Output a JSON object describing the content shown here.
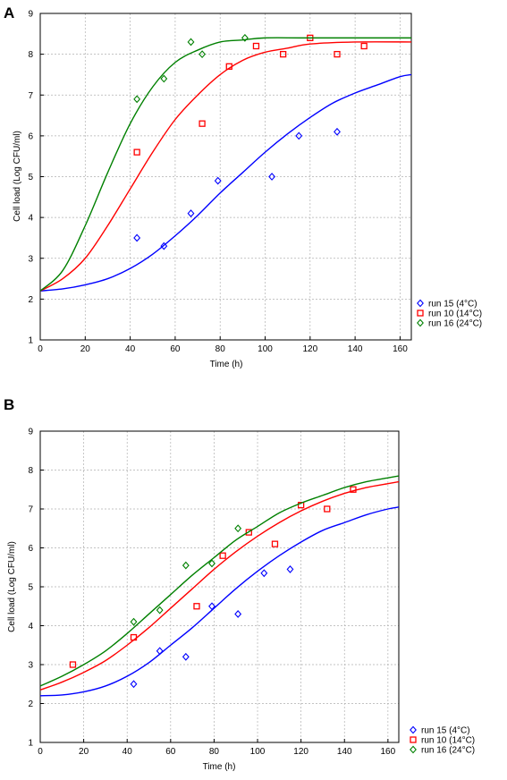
{
  "chart_data": [
    {
      "panel_label": "A",
      "type": "scatter",
      "xlabel": "Time (h)",
      "ylabel": "Cell load (Log CFU/ml)",
      "xlim": [
        0,
        165
      ],
      "ylim": [
        1,
        9
      ],
      "xticks": [
        "0",
        "20",
        "40",
        "60",
        "80",
        "100",
        "120",
        "140",
        "160"
      ],
      "yticks": [
        "1",
        "2",
        "3",
        "4",
        "5",
        "6",
        "7",
        "8",
        "9"
      ],
      "grid": true,
      "legend_position": "bottom-right",
      "series": [
        {
          "name": "run 15 (4°C)",
          "color": "#0000ff",
          "marker": "diamond",
          "points": [
            [
              43,
              3.5
            ],
            [
              55,
              3.3
            ],
            [
              67,
              4.1
            ],
            [
              79,
              4.9
            ],
            [
              103,
              5.0
            ],
            [
              115,
              6.0
            ],
            [
              132,
              6.1
            ]
          ],
          "fit": [
            [
              0,
              2.2
            ],
            [
              10,
              2.25
            ],
            [
              20,
              2.35
            ],
            [
              30,
              2.5
            ],
            [
              40,
              2.75
            ],
            [
              50,
              3.1
            ],
            [
              60,
              3.55
            ],
            [
              70,
              4.05
            ],
            [
              80,
              4.6
            ],
            [
              90,
              5.1
            ],
            [
              100,
              5.6
            ],
            [
              110,
              6.05
            ],
            [
              120,
              6.45
            ],
            [
              130,
              6.8
            ],
            [
              140,
              7.05
            ],
            [
              150,
              7.25
            ],
            [
              160,
              7.45
            ],
            [
              165,
              7.5
            ]
          ]
        },
        {
          "name": "run 10 (14°C)",
          "color": "#ff0000",
          "marker": "square",
          "points": [
            [
              43,
              5.6
            ],
            [
              72,
              6.3
            ],
            [
              84,
              7.7
            ],
            [
              96,
              8.2
            ],
            [
              108,
              8.0
            ],
            [
              120,
              8.4
            ],
            [
              132,
              8.0
            ],
            [
              144,
              8.2
            ]
          ],
          "fit": [
            [
              0,
              2.2
            ],
            [
              10,
              2.5
            ],
            [
              20,
              3.0
            ],
            [
              30,
              3.8
            ],
            [
              40,
              4.7
            ],
            [
              50,
              5.6
            ],
            [
              60,
              6.4
            ],
            [
              70,
              7.0
            ],
            [
              80,
              7.5
            ],
            [
              90,
              7.85
            ],
            [
              100,
              8.05
            ],
            [
              110,
              8.15
            ],
            [
              120,
              8.25
            ],
            [
              140,
              8.3
            ],
            [
              165,
              8.3
            ]
          ]
        },
        {
          "name": "run 16 (24°C)",
          "color": "#008000",
          "marker": "diamond",
          "points": [
            [
              43,
              6.9
            ],
            [
              55,
              7.4
            ],
            [
              67,
              8.3
            ],
            [
              72,
              8.0
            ],
            [
              91,
              8.4
            ]
          ],
          "fit": [
            [
              0,
              2.2
            ],
            [
              10,
              2.7
            ],
            [
              20,
              3.8
            ],
            [
              30,
              5.1
            ],
            [
              40,
              6.3
            ],
            [
              50,
              7.2
            ],
            [
              60,
              7.8
            ],
            [
              70,
              8.1
            ],
            [
              80,
              8.3
            ],
            [
              90,
              8.35
            ],
            [
              100,
              8.4
            ],
            [
              120,
              8.4
            ],
            [
              165,
              8.4
            ]
          ]
        }
      ]
    },
    {
      "panel_label": "B",
      "type": "scatter",
      "xlabel": "Time (h)",
      "ylabel": "Cell load (Log CFU/ml)",
      "xlim": [
        0,
        165
      ],
      "ylim": [
        1,
        9
      ],
      "xticks": [
        "0",
        "20",
        "40",
        "60",
        "80",
        "100",
        "120",
        "140",
        "160"
      ],
      "yticks": [
        "1",
        "2",
        "3",
        "4",
        "5",
        "6",
        "7",
        "8",
        "9"
      ],
      "grid": true,
      "legend_position": "bottom-right",
      "series": [
        {
          "name": "run 15 (4°C)",
          "color": "#0000ff",
          "marker": "diamond",
          "points": [
            [
              43,
              2.5
            ],
            [
              55,
              3.35
            ],
            [
              67,
              3.2
            ],
            [
              79,
              4.5
            ],
            [
              91,
              4.3
            ],
            [
              103,
              5.35
            ],
            [
              115,
              5.45
            ]
          ],
          "fit": [
            [
              0,
              2.2
            ],
            [
              10,
              2.22
            ],
            [
              20,
              2.3
            ],
            [
              30,
              2.45
            ],
            [
              40,
              2.7
            ],
            [
              50,
              3.05
            ],
            [
              60,
              3.5
            ],
            [
              70,
              3.95
            ],
            [
              80,
              4.45
            ],
            [
              90,
              4.95
            ],
            [
              100,
              5.4
            ],
            [
              110,
              5.8
            ],
            [
              120,
              6.15
            ],
            [
              130,
              6.45
            ],
            [
              140,
              6.65
            ],
            [
              150,
              6.85
            ],
            [
              160,
              7.0
            ],
            [
              165,
              7.05
            ]
          ]
        },
        {
          "name": "run 10 (14°C)",
          "color": "#ff0000",
          "marker": "square",
          "points": [
            [
              15,
              3.0
            ],
            [
              43,
              3.7
            ],
            [
              72,
              4.5
            ],
            [
              84,
              5.8
            ],
            [
              96,
              6.4
            ],
            [
              108,
              6.1
            ],
            [
              120,
              7.1
            ],
            [
              132,
              7.0
            ],
            [
              144,
              7.5
            ]
          ],
          "fit": [
            [
              0,
              2.35
            ],
            [
              10,
              2.55
            ],
            [
              20,
              2.8
            ],
            [
              30,
              3.1
            ],
            [
              40,
              3.5
            ],
            [
              50,
              3.95
            ],
            [
              60,
              4.45
            ],
            [
              70,
              4.95
            ],
            [
              80,
              5.45
            ],
            [
              90,
              5.9
            ],
            [
              100,
              6.3
            ],
            [
              110,
              6.65
            ],
            [
              120,
              6.95
            ],
            [
              130,
              7.2
            ],
            [
              140,
              7.4
            ],
            [
              150,
              7.55
            ],
            [
              160,
              7.65
            ],
            [
              165,
              7.7
            ]
          ]
        },
        {
          "name": "run 16 (24°C)",
          "color": "#008000",
          "marker": "diamond",
          "points": [
            [
              43,
              4.1
            ],
            [
              55,
              4.4
            ],
            [
              67,
              5.55
            ],
            [
              79,
              5.6
            ],
            [
              91,
              6.5
            ]
          ],
          "fit": [
            [
              0,
              2.45
            ],
            [
              10,
              2.7
            ],
            [
              20,
              3.0
            ],
            [
              30,
              3.35
            ],
            [
              40,
              3.8
            ],
            [
              50,
              4.3
            ],
            [
              60,
              4.8
            ],
            [
              70,
              5.3
            ],
            [
              80,
              5.75
            ],
            [
              90,
              6.2
            ],
            [
              100,
              6.55
            ],
            [
              110,
              6.9
            ],
            [
              120,
              7.15
            ],
            [
              130,
              7.35
            ],
            [
              140,
              7.55
            ],
            [
              150,
              7.7
            ],
            [
              160,
              7.8
            ],
            [
              165,
              7.85
            ]
          ]
        }
      ]
    }
  ]
}
